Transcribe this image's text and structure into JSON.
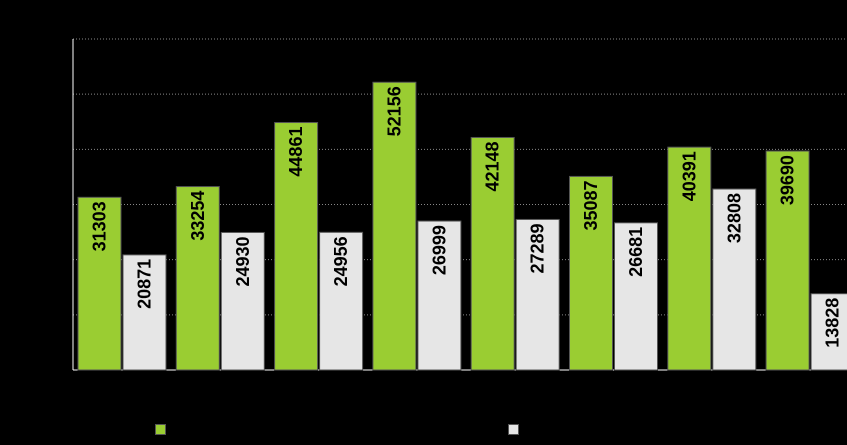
{
  "chart_data": {
    "type": "bar",
    "title": "",
    "xlabel": "",
    "ylabel": "",
    "ylim": [
      0,
      60000
    ],
    "grid": true,
    "legend_position": "bottom",
    "categories": [
      "",
      "",
      "",
      "",
      "",
      "",
      "",
      ""
    ],
    "series": [
      {
        "color": "#9ACD32",
        "values": [
          31303,
          33254,
          44861,
          52156,
          42148,
          35087,
          40391,
          39690
        ],
        "labels": [
          "31303",
          "33254",
          "44861",
          "52156",
          "42148",
          "35087",
          "40391",
          "39690"
        ]
      },
      {
        "color": "#E6E6E6",
        "values": [
          20871,
          24930,
          24956,
          26999,
          27289,
          26681,
          32808,
          13828
        ],
        "labels": [
          "20871",
          "24930",
          "24956",
          "26999",
          "27289",
          "26681",
          "32808",
          "13828"
        ]
      }
    ]
  },
  "colors": {
    "background": "#000000",
    "axis": "#ffffff",
    "gridline": "#888888",
    "bar_stroke": "#555555"
  }
}
